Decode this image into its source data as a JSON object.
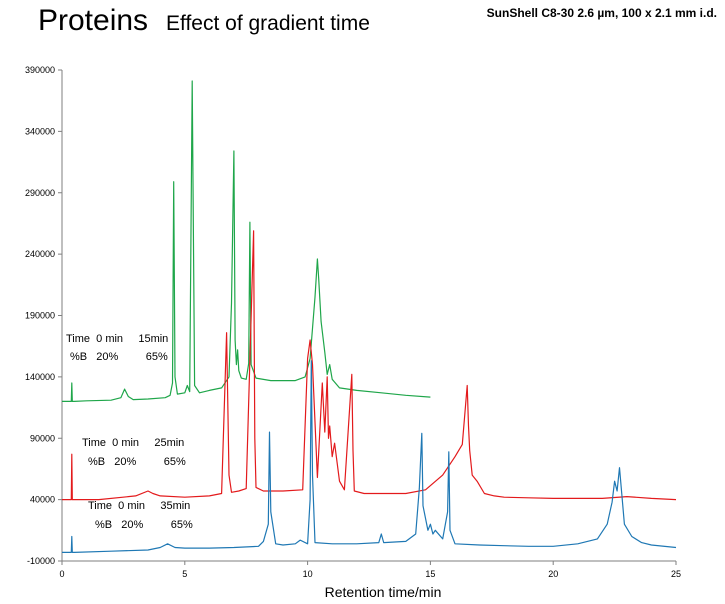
{
  "header": {
    "title": "Proteins",
    "subtitle": "Effect of gradient time",
    "column_spec": "SunShell  C8-30  2.6 µm, 100 x 2.1 mm i.d."
  },
  "chart_data": {
    "type": "line",
    "xlabel": "Retention time/min",
    "ylabel": "",
    "xlim": [
      0,
      25
    ],
    "ylim": [
      -10000,
      390000
    ],
    "x_ticks": [
      "0",
      "5",
      "10",
      "15",
      "20",
      "25"
    ],
    "y_ticks": [
      "-10000",
      "40000",
      "90000",
      "140000",
      "190000",
      "240000",
      "290000",
      "340000",
      "390000"
    ],
    "grid": false,
    "series": [
      {
        "color": "#1fa64a",
        "x": [
          0.0,
          0.38,
          0.4,
          0.42,
          0.5,
          1.0,
          2.0,
          2.4,
          2.55,
          2.7,
          2.9,
          3.5,
          4.2,
          4.4,
          4.5,
          4.55,
          4.6,
          4.7,
          5.0,
          5.1,
          5.2,
          5.3,
          5.4,
          5.6,
          6.0,
          6.5,
          6.8,
          6.9,
          7.0,
          7.05,
          7.1,
          7.15,
          7.2,
          7.3,
          7.5,
          7.6,
          7.65,
          7.7,
          7.9,
          8.5,
          9.5,
          9.9,
          10.1,
          10.3,
          10.4,
          10.45,
          10.55,
          10.7,
          10.8,
          10.9,
          11.0,
          11.3,
          12.0,
          13.0,
          14.0,
          15.0
        ],
        "y": [
          120000,
          120000,
          135000,
          120000,
          120000,
          120500,
          121000,
          123000,
          130000,
          124000,
          121500,
          122000,
          123000,
          125000,
          135000,
          299000,
          140000,
          126000,
          127000,
          133000,
          128000,
          381000,
          133000,
          127000,
          129000,
          131000,
          140000,
          200000,
          324000,
          170000,
          150000,
          162000,
          145000,
          139000,
          138000,
          151000,
          266000,
          150000,
          139000,
          137000,
          137000,
          140000,
          155000,
          205000,
          236000,
          220000,
          185000,
          160000,
          142000,
          150000,
          138000,
          131000,
          129000,
          127000,
          125000,
          123500
        ]
      },
      {
        "color": "#e31a1c",
        "x": [
          0.0,
          0.38,
          0.4,
          0.42,
          0.5,
          1.5,
          3.0,
          3.5,
          3.7,
          4.0,
          5.0,
          6.0,
          6.5,
          6.7,
          6.8,
          6.9,
          7.2,
          7.5,
          7.8,
          7.85,
          7.9,
          8.2,
          9.0,
          9.8,
          10.0,
          10.1,
          10.2,
          10.4,
          10.6,
          10.7,
          10.8,
          10.85,
          10.9,
          11.0,
          11.1,
          11.3,
          11.5,
          11.8,
          11.85,
          11.9,
          12.3,
          13.0,
          14.0,
          14.8,
          15.5,
          16.0,
          16.3,
          16.5,
          16.55,
          16.6,
          16.7,
          16.9,
          17.2,
          17.6,
          18.0,
          19.0,
          20.0,
          21.0,
          22.0,
          23.0,
          24.0,
          25.0
        ],
        "y": [
          40000,
          40000,
          77000,
          40000,
          40000,
          40000,
          43000,
          47000,
          45000,
          43000,
          42000,
          43000,
          45000,
          176000,
          60000,
          46000,
          47000,
          49000,
          259000,
          90000,
          50000,
          47000,
          47000,
          48000,
          155000,
          170000,
          150000,
          58000,
          135000,
          95000,
          140000,
          90000,
          100000,
          75000,
          86000,
          55000,
          48000,
          142000,
          80000,
          47000,
          45000,
          45000,
          45000,
          48000,
          60000,
          75000,
          85000,
          133000,
          100000,
          80000,
          60000,
          55000,
          45000,
          43000,
          42000,
          41500,
          41000,
          41000,
          41000,
          42500,
          41000,
          40000
        ]
      },
      {
        "color": "#1f78b4",
        "x": [
          0.0,
          0.38,
          0.4,
          0.42,
          0.5,
          2.0,
          3.5,
          4.0,
          4.3,
          4.6,
          5.0,
          6.0,
          7.0,
          8.0,
          8.2,
          8.4,
          8.45,
          8.5,
          8.7,
          9.0,
          9.5,
          9.7,
          10.0,
          10.1,
          10.15,
          10.2,
          10.3,
          11.0,
          12.0,
          12.9,
          13.0,
          13.1,
          14.0,
          14.4,
          14.55,
          14.65,
          14.7,
          14.9,
          15.0,
          15.1,
          15.2,
          15.5,
          15.7,
          15.75,
          15.8,
          16.0,
          17.0,
          18.0,
          19.0,
          20.0,
          21.0,
          21.8,
          22.2,
          22.4,
          22.5,
          22.6,
          22.7,
          22.9,
          23.2,
          23.6,
          24.0,
          25.0
        ],
        "y": [
          -3000,
          -3000,
          10000,
          -3000,
          -3000,
          -2000,
          -1000,
          1000,
          4000,
          1000,
          500,
          500,
          1000,
          2000,
          6000,
          20000,
          95000,
          30000,
          4000,
          3000,
          4000,
          7000,
          4000,
          40000,
          153000,
          60000,
          5000,
          4000,
          4000,
          5000,
          12000,
          5000,
          6000,
          12000,
          49000,
          94000,
          35000,
          15000,
          20000,
          12000,
          15000,
          8000,
          30000,
          79000,
          15000,
          4000,
          3000,
          2500,
          2000,
          2000,
          4000,
          8000,
          20000,
          38000,
          55000,
          47000,
          66000,
          20000,
          10000,
          5000,
          3000,
          1000
        ]
      }
    ],
    "annotations": [
      {
        "row1": "Time  0 min     15min",
        "row2": "%B   20%         65%"
      },
      {
        "row1": "Time  0 min     25min",
        "row2": "%B   20%         65%"
      },
      {
        "row1": "Time  0 min     35min",
        "row2": "%B   20%         65%"
      }
    ]
  }
}
